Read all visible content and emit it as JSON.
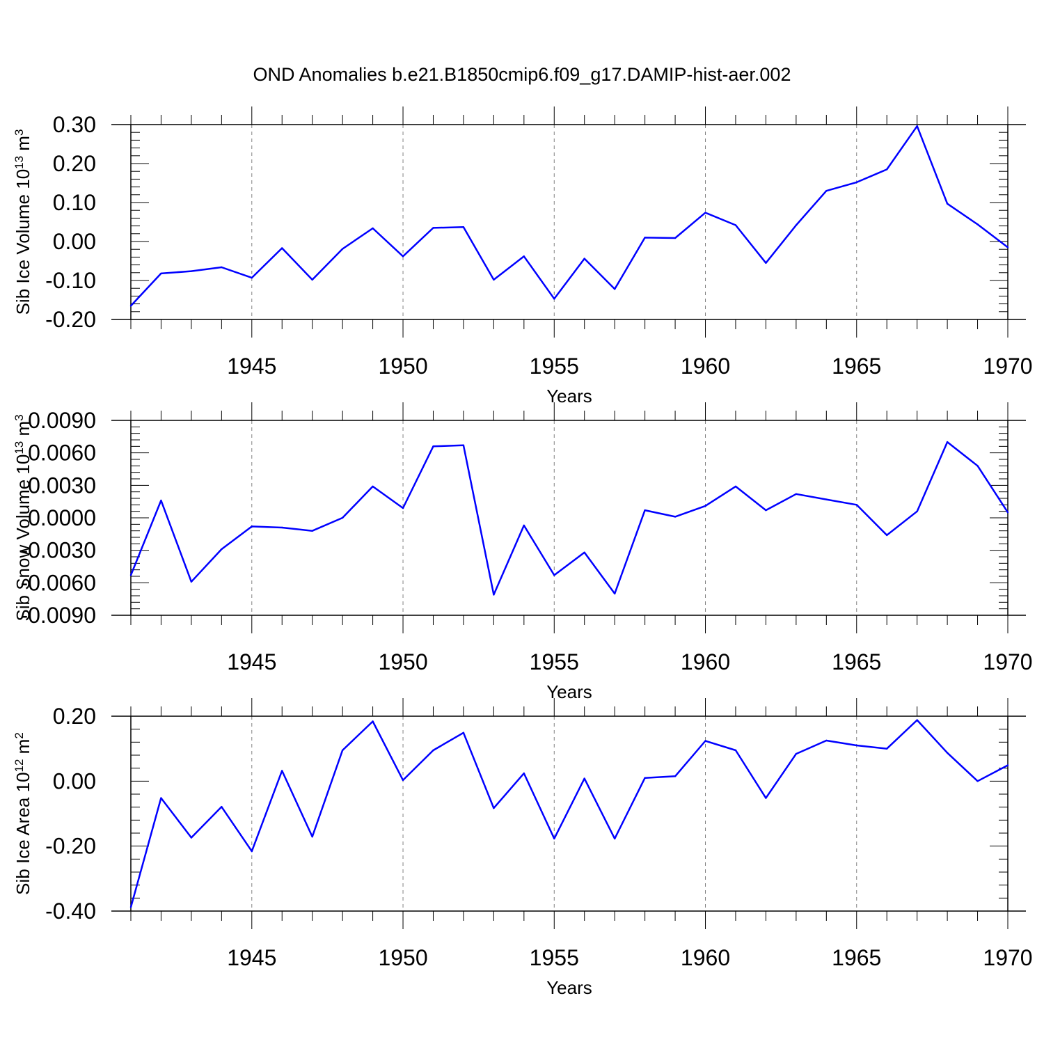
{
  "chart_data": {
    "type": "line",
    "title": "OND Anomalies b.e21.B1850cmip6.f09_g17.DAMIP-hist-aer.002",
    "series_color": "#0000ff",
    "panels": [
      {
        "type": "line",
        "xlabel": "Years",
        "ylabel_main": "Sib Ice Volume 10",
        "ylabel_exp": "13",
        "ylabel_unit": " m",
        "ylabel_unit_exp": "3",
        "xlim": [
          1941,
          1970
        ],
        "ylim": [
          -0.2,
          0.3
        ],
        "yticks": [
          -0.2,
          -0.1,
          0.0,
          0.1,
          0.2,
          0.3
        ],
        "ytick_labels": [
          "-0.20",
          "-0.10",
          "0.00",
          "0.10",
          "0.20",
          "0.30"
        ],
        "xticks": [
          1945,
          1950,
          1955,
          1960,
          1965,
          1970
        ],
        "xtick_labels": [
          "1945",
          "1950",
          "1955",
          "1960",
          "1965",
          "1970"
        ],
        "x": [
          1941,
          1942,
          1943,
          1944,
          1945,
          1946,
          1947,
          1948,
          1949,
          1950,
          1951,
          1952,
          1953,
          1954,
          1955,
          1956,
          1957,
          1958,
          1959,
          1960,
          1961,
          1962,
          1963,
          1964,
          1965,
          1966,
          1967,
          1968,
          1969,
          1970
        ],
        "values": [
          -0.165,
          -0.082,
          -0.076,
          -0.066,
          -0.093,
          -0.017,
          -0.098,
          -0.019,
          0.034,
          -0.038,
          0.035,
          0.037,
          -0.098,
          -0.038,
          -0.147,
          -0.044,
          -0.122,
          0.01,
          0.009,
          0.074,
          0.042,
          -0.055,
          0.042,
          0.13,
          0.152,
          0.185,
          0.296,
          0.097,
          0.044,
          -0.015
        ]
      },
      {
        "type": "line",
        "xlabel": "Years",
        "ylabel_main": "Sib Snow Volume 10",
        "ylabel_exp": "13",
        "ylabel_unit": " m",
        "ylabel_unit_exp": "3",
        "xlim": [
          1941,
          1970
        ],
        "ylim": [
          -0.009,
          0.009
        ],
        "yticks": [
          -0.009,
          -0.006,
          -0.003,
          0.0,
          0.003,
          0.006,
          0.009
        ],
        "ytick_labels": [
          "-0.0090",
          "-0.0060",
          "-0.0030",
          "0.0000",
          "0.0030",
          "0.0060",
          "0.0090"
        ],
        "xticks": [
          1945,
          1950,
          1955,
          1960,
          1965,
          1970
        ],
        "xtick_labels": [
          "1945",
          "1950",
          "1955",
          "1960",
          "1965",
          "1970"
        ],
        "x": [
          1941,
          1942,
          1943,
          1944,
          1945,
          1946,
          1947,
          1948,
          1949,
          1950,
          1951,
          1952,
          1953,
          1954,
          1955,
          1956,
          1957,
          1958,
          1959,
          1960,
          1961,
          1962,
          1963,
          1964,
          1965,
          1966,
          1967,
          1968,
          1969,
          1970
        ],
        "values": [
          -0.0053,
          0.0016,
          -0.0059,
          -0.0029,
          -0.0008,
          -0.0009,
          -0.0012,
          0.0,
          0.0029,
          0.0009,
          0.0066,
          0.0067,
          -0.0071,
          -0.0007,
          -0.0053,
          -0.0032,
          -0.007,
          0.0007,
          0.0001,
          0.0011,
          0.0029,
          0.0007,
          0.0022,
          0.0017,
          0.0012,
          -0.0016,
          0.0006,
          0.007,
          0.0048,
          0.0005
        ]
      },
      {
        "type": "line",
        "xlabel": "Years",
        "ylabel_main": "Sib Ice Area 10",
        "ylabel_exp": "12",
        "ylabel_unit": " m",
        "ylabel_unit_exp": "2",
        "xlim": [
          1941,
          1970
        ],
        "ylim": [
          -0.4,
          0.2
        ],
        "yticks": [
          -0.4,
          -0.2,
          0.0,
          0.2
        ],
        "ytick_labels": [
          "-0.40",
          "-0.20",
          "0.00",
          "0.20"
        ],
        "xticks": [
          1945,
          1950,
          1955,
          1960,
          1965,
          1970
        ],
        "xtick_labels": [
          "1945",
          "1950",
          "1955",
          "1960",
          "1965",
          "1970"
        ],
        "x": [
          1941,
          1942,
          1943,
          1944,
          1945,
          1946,
          1947,
          1948,
          1949,
          1950,
          1951,
          1952,
          1953,
          1954,
          1955,
          1956,
          1957,
          1958,
          1959,
          1960,
          1961,
          1962,
          1963,
          1964,
          1965,
          1966,
          1967,
          1968,
          1969,
          1970
        ],
        "values": [
          -0.388,
          -0.052,
          -0.174,
          -0.079,
          -0.216,
          0.032,
          -0.171,
          0.095,
          0.184,
          0.003,
          0.095,
          0.149,
          -0.083,
          0.024,
          -0.177,
          0.008,
          -0.177,
          0.01,
          0.015,
          0.124,
          0.095,
          -0.052,
          0.084,
          0.125,
          0.11,
          0.1,
          0.188,
          0.087,
          0.0,
          0.049
        ]
      }
    ]
  }
}
